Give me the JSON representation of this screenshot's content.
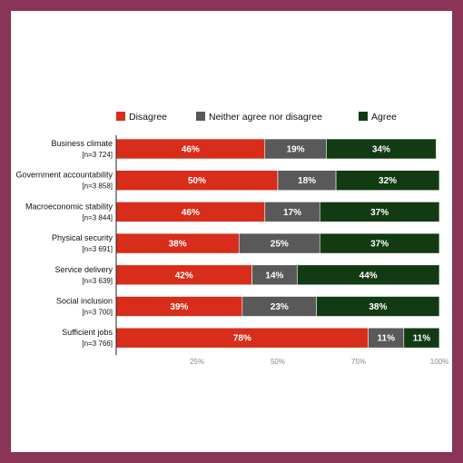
{
  "colors": {
    "frame": "#8a3458",
    "disagree": "#d72d1a",
    "neither": "#595959",
    "agree": "#123b14"
  },
  "chart_data": {
    "type": "bar",
    "orientation": "horizontal",
    "stacked": true,
    "title": "",
    "xlabel": "",
    "ylabel": "",
    "xlim": [
      0,
      100
    ],
    "x_ticks": [
      "",
      "25%",
      "50%",
      "75%",
      "100%"
    ],
    "grid": false,
    "legend_position": "top",
    "categories": [
      {
        "label": "Business climate",
        "n": "[n=3 724]"
      },
      {
        "label": "Government accountability",
        "n": "[n=3 858]"
      },
      {
        "label": "Macroeconomic stability",
        "n": "[n=3 844]"
      },
      {
        "label": "Physical security",
        "n": "[n=3 691]"
      },
      {
        "label": "Service delivery",
        "n": "[n=3 639]"
      },
      {
        "label": "Social inclusion",
        "n": "[n=3 700]"
      },
      {
        "label": "Sufficient jobs",
        "n": "[n=3 766]"
      }
    ],
    "series": [
      {
        "name": "Disagree",
        "color": "#d72d1a",
        "values": [
          46,
          50,
          46,
          38,
          42,
          39,
          78
        ],
        "labels": [
          "46%",
          "50%",
          "46%",
          "38%",
          "42%",
          "39%",
          "78%"
        ]
      },
      {
        "name": "Neither agree nor disagree",
        "color": "#595959",
        "values": [
          19,
          18,
          17,
          25,
          14,
          23,
          11
        ],
        "labels": [
          "19%",
          "18%",
          "17%",
          "25%",
          "14%",
          "23%",
          "11%"
        ]
      },
      {
        "name": "Agree",
        "color": "#123b14",
        "values": [
          34,
          32,
          37,
          37,
          44,
          38,
          11
        ],
        "labels": [
          "34%",
          "32%",
          "37%",
          "37%",
          "44%",
          "38%",
          "11%"
        ]
      }
    ]
  }
}
